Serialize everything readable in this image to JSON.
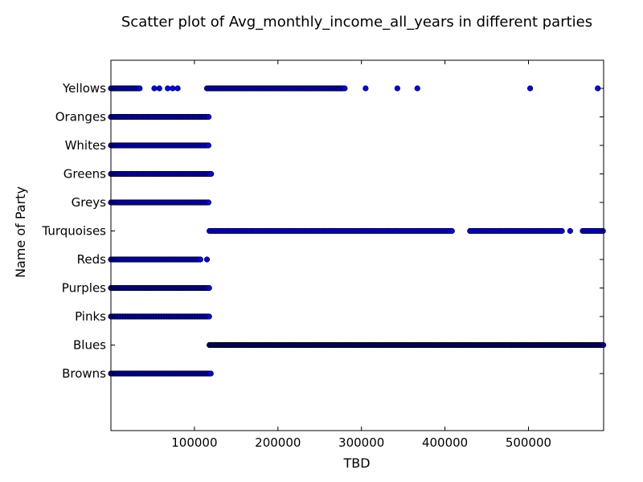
{
  "chart_data": {
    "type": "scatter",
    "title": "Scatter plot of Avg_monthly_income_all_years in different parties",
    "xlabel": "TBD",
    "ylabel": "Name of Party",
    "xlim": [
      0,
      590000
    ],
    "x_ticks": [
      100000,
      200000,
      300000,
      400000,
      500000
    ],
    "x_tick_labels": [
      "100000",
      "200000",
      "300000",
      "400000",
      "500000"
    ],
    "categories": [
      "Browns",
      "Blues",
      "Pinks",
      "Purples",
      "Reds",
      "Turquoises",
      "Greys",
      "Greens",
      "Whites",
      "Oranges",
      "Yellows"
    ],
    "grid": false,
    "series": [
      {
        "category": "Yellows",
        "ranges": [
          [
            0,
            35000
          ],
          [
            115000,
            280000
          ]
        ],
        "density": 1500,
        "extra_points": [
          52000,
          58000,
          68000,
          74000,
          80000,
          305000,
          343000,
          367000,
          502000,
          583000
        ]
      },
      {
        "category": "Oranges",
        "ranges": [
          [
            0,
            118000
          ]
        ],
        "density": 1500
      },
      {
        "category": "Whites",
        "ranges": [
          [
            0,
            118000
          ]
        ],
        "density": 1600
      },
      {
        "category": "Greens",
        "ranges": [
          [
            0,
            120000
          ]
        ],
        "density": 1500
      },
      {
        "category": "Greys",
        "ranges": [
          [
            0,
            118000
          ]
        ],
        "density": 1600
      },
      {
        "category": "Turquoises",
        "ranges": [
          [
            118000,
            410000
          ],
          [
            430000,
            540000
          ],
          [
            565000,
            590000
          ]
        ],
        "density": 2200,
        "extra_points": [
          550000
        ]
      },
      {
        "category": "Reds",
        "ranges": [
          [
            0,
            108000
          ]
        ],
        "density": 1600,
        "extra_points": [
          115000
        ]
      },
      {
        "category": "Purples",
        "ranges": [
          [
            0,
            118000
          ]
        ],
        "density": 1200
      },
      {
        "category": "Pinks",
        "ranges": [
          [
            0,
            118000
          ]
        ],
        "density": 1400
      },
      {
        "category": "Blues",
        "ranges": [
          [
            118000,
            590000
          ]
        ],
        "density": 900
      },
      {
        "category": "Browns",
        "ranges": [
          [
            0,
            120000
          ]
        ],
        "density": 1300
      }
    ]
  }
}
